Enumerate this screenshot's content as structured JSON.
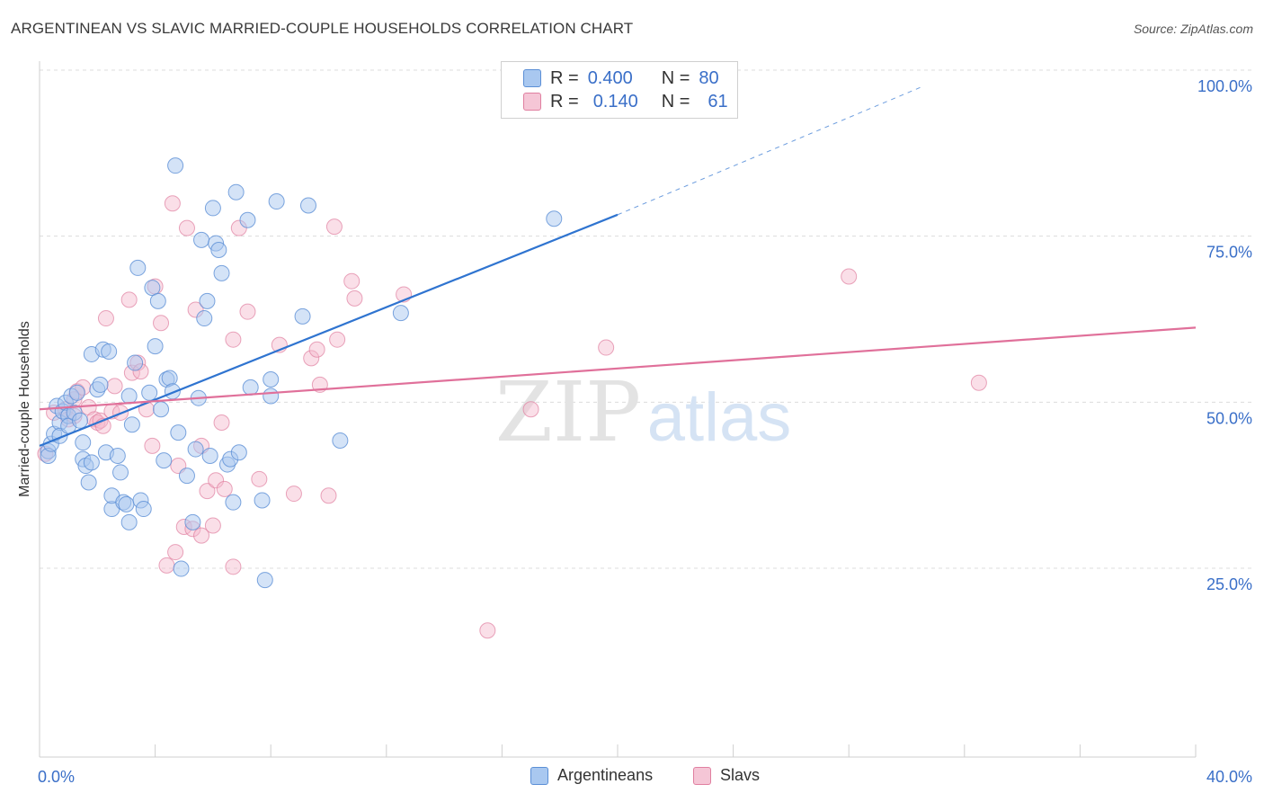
{
  "title": "ARGENTINEAN VS SLAVIC MARRIED-COUPLE HOUSEHOLDS CORRELATION CHART",
  "source": "Source: ZipAtlas.com",
  "watermark": {
    "zip": "ZIP",
    "atlas": "atlas"
  },
  "legend_top": {
    "argentineans": {
      "r_label": "R =",
      "r_value": "0.400",
      "n_label": "N =",
      "n_value": "80"
    },
    "slavs": {
      "r_label": "R =",
      "r_value": "0.140",
      "n_label": "N =",
      "n_value": "61"
    }
  },
  "legend_bottom": {
    "argentineans": "Argentineans",
    "slavs": "Slavs"
  },
  "chart_data": {
    "type": "scatter",
    "title": "ARGENTINEAN VS SLAVIC MARRIED-COUPLE HOUSEHOLDS CORRELATION CHART",
    "xlabel": "",
    "ylabel": "Married-couple Households",
    "xlim": [
      0,
      40
    ],
    "ylim": [
      0,
      105
    ],
    "x_tick_labels": [
      "0.0%",
      "40.0%"
    ],
    "y_ticks": [
      25,
      50,
      75,
      100
    ],
    "y_tick_labels": [
      "25.0%",
      "50.0%",
      "75.0%",
      "100.0%"
    ],
    "colors": {
      "argentineans_fill": "#a9c8f0",
      "argentineans_stroke": "#5b8fd6",
      "argentineans_line": "#2f74d0",
      "slavs_fill": "#f5b8cc",
      "slavs_stroke": "#e07fa0",
      "slavs_line": "#e0709a",
      "tick_label": "#3a6fc8",
      "grid": "#dcdcdc"
    },
    "series": [
      {
        "name": "Argentineans",
        "R": 0.4,
        "N": 80,
        "trend": {
          "x0": 0,
          "y0": 46.0,
          "x1": 20,
          "y1": 80.8,
          "dashed_to_x": 30.6,
          "dashed_to_y": 100.2
        },
        "points": [
          [
            0.3,
            45.2
          ],
          [
            0.3,
            44.5
          ],
          [
            0.4,
            46.3
          ],
          [
            0.5,
            47.8
          ],
          [
            0.6,
            52.0
          ],
          [
            0.7,
            49.5
          ],
          [
            0.7,
            47.5
          ],
          [
            0.8,
            51.2
          ],
          [
            0.9,
            52.5
          ],
          [
            1.0,
            50.5
          ],
          [
            1.0,
            49.0
          ],
          [
            1.1,
            53.5
          ],
          [
            1.2,
            51.0
          ],
          [
            1.3,
            54.0
          ],
          [
            1.4,
            49.8
          ],
          [
            1.5,
            44.0
          ],
          [
            1.5,
            46.5
          ],
          [
            1.6,
            43.0
          ],
          [
            1.7,
            40.5
          ],
          [
            1.8,
            43.5
          ],
          [
            1.8,
            59.8
          ],
          [
            2.0,
            54.5
          ],
          [
            2.1,
            55.2
          ],
          [
            2.2,
            60.5
          ],
          [
            2.3,
            45.0
          ],
          [
            2.4,
            60.2
          ],
          [
            2.5,
            36.5
          ],
          [
            2.5,
            38.5
          ],
          [
            2.7,
            44.5
          ],
          [
            2.8,
            42.0
          ],
          [
            2.9,
            37.5
          ],
          [
            3.0,
            37.2
          ],
          [
            3.1,
            53.5
          ],
          [
            3.1,
            34.5
          ],
          [
            3.2,
            49.2
          ],
          [
            3.3,
            58.5
          ],
          [
            3.4,
            72.8
          ],
          [
            3.5,
            37.8
          ],
          [
            3.6,
            36.5
          ],
          [
            3.8,
            54.0
          ],
          [
            3.9,
            69.8
          ],
          [
            4.0,
            61.0
          ],
          [
            4.1,
            67.8
          ],
          [
            4.2,
            51.5
          ],
          [
            4.3,
            43.8
          ],
          [
            4.4,
            56.0
          ],
          [
            4.5,
            56.2
          ],
          [
            4.6,
            54.2
          ],
          [
            4.7,
            88.2
          ],
          [
            4.8,
            48.0
          ],
          [
            4.9,
            27.5
          ],
          [
            5.1,
            41.5
          ],
          [
            5.3,
            34.5
          ],
          [
            5.4,
            45.5
          ],
          [
            5.5,
            53.2
          ],
          [
            5.6,
            77.0
          ],
          [
            5.7,
            65.2
          ],
          [
            5.8,
            67.8
          ],
          [
            5.9,
            44.5
          ],
          [
            6.0,
            81.8
          ],
          [
            6.1,
            76.5
          ],
          [
            6.2,
            75.5
          ],
          [
            6.3,
            72.0
          ],
          [
            6.5,
            43.2
          ],
          [
            6.6,
            44.0
          ],
          [
            6.7,
            37.5
          ],
          [
            6.8,
            84.2
          ],
          [
            6.9,
            45.0
          ],
          [
            7.2,
            80.0
          ],
          [
            7.3,
            54.8
          ],
          [
            7.7,
            37.8
          ],
          [
            7.8,
            25.8
          ],
          [
            8.0,
            53.5
          ],
          [
            8.0,
            56.0
          ],
          [
            8.2,
            82.8
          ],
          [
            9.1,
            65.5
          ],
          [
            9.3,
            82.2
          ],
          [
            10.4,
            46.8
          ],
          [
            12.5,
            66.0
          ],
          [
            17.8,
            80.2
          ]
        ]
      },
      {
        "name": "Slavs",
        "R": 0.14,
        "N": 61,
        "trend": {
          "x0": 0,
          "y0": 51.5,
          "x1": 40,
          "y1": 63.8
        },
        "points": [
          [
            0.2,
            44.8
          ],
          [
            0.5,
            51.0
          ],
          [
            0.9,
            51.5
          ],
          [
            1.0,
            50.0
          ],
          [
            1.2,
            53.0
          ],
          [
            1.3,
            54.2
          ],
          [
            1.5,
            54.8
          ],
          [
            1.7,
            51.8
          ],
          [
            1.9,
            50.0
          ],
          [
            2.0,
            49.5
          ],
          [
            2.1,
            49.8
          ],
          [
            2.3,
            65.2
          ],
          [
            2.5,
            51.2
          ],
          [
            2.6,
            55.0
          ],
          [
            2.8,
            51.0
          ],
          [
            3.1,
            68.0
          ],
          [
            3.2,
            57.0
          ],
          [
            3.4,
            58.5
          ],
          [
            3.5,
            57.2
          ],
          [
            3.7,
            51.5
          ],
          [
            3.9,
            46.0
          ],
          [
            4.0,
            70.0
          ],
          [
            4.2,
            64.5
          ],
          [
            4.4,
            28.0
          ],
          [
            4.6,
            82.5
          ],
          [
            4.7,
            30.0
          ],
          [
            4.8,
            43.0
          ],
          [
            5.0,
            33.8
          ],
          [
            5.1,
            78.8
          ],
          [
            5.3,
            33.5
          ],
          [
            5.4,
            66.5
          ],
          [
            5.6,
            32.5
          ],
          [
            5.6,
            46.0
          ],
          [
            5.8,
            39.2
          ],
          [
            6.0,
            34.0
          ],
          [
            6.1,
            40.8
          ],
          [
            6.3,
            49.5
          ],
          [
            6.4,
            39.5
          ],
          [
            6.7,
            62.0
          ],
          [
            6.7,
            27.8
          ],
          [
            6.9,
            78.8
          ],
          [
            7.2,
            66.2
          ],
          [
            7.6,
            41.0
          ],
          [
            8.3,
            61.2
          ],
          [
            8.8,
            38.8
          ],
          [
            9.4,
            59.2
          ],
          [
            9.6,
            60.5
          ],
          [
            9.7,
            55.2
          ],
          [
            10.0,
            38.5
          ],
          [
            10.2,
            79.0
          ],
          [
            10.3,
            62.0
          ],
          [
            10.8,
            70.8
          ],
          [
            10.9,
            68.2
          ],
          [
            12.6,
            68.8
          ],
          [
            15.5,
            18.2
          ],
          [
            17.0,
            51.5
          ],
          [
            19.6,
            60.8
          ],
          [
            28.0,
            71.5
          ],
          [
            32.5,
            55.5
          ],
          [
            1.2,
            50.5
          ],
          [
            2.2,
            49.0
          ]
        ]
      }
    ]
  }
}
